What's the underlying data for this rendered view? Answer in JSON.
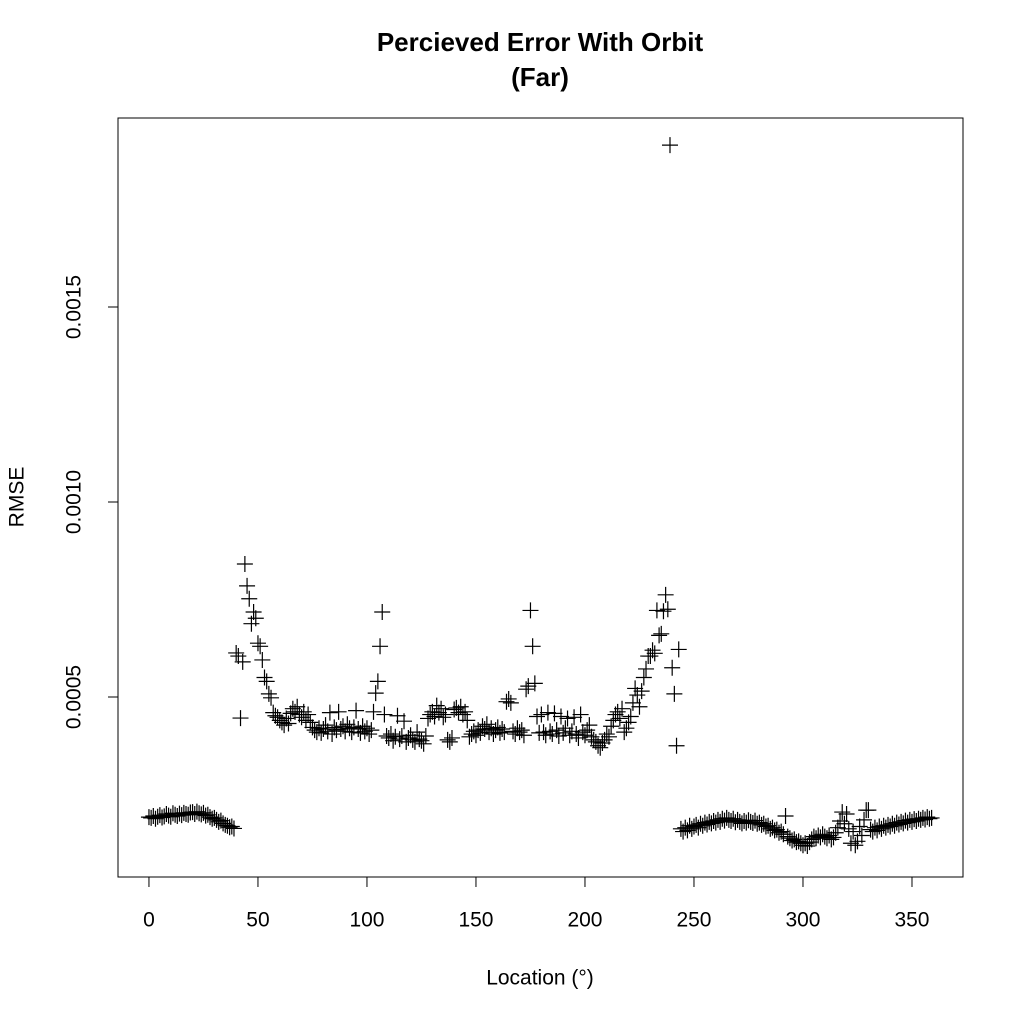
{
  "chart_data": {
    "type": "scatter",
    "title": [
      "Percieved Error With Orbit",
      "(Far)"
    ],
    "x_label": "Location (°)",
    "y_label": "RMSE",
    "xlim": [
      -14.2,
      373.4
    ],
    "ylim": [
      3.85e-05,
      0.0019846
    ],
    "xticks": [
      0,
      50,
      100,
      150,
      200,
      250,
      300,
      350
    ],
    "yticks": [
      0.0005,
      {
        "value": 0.001,
        "label": "0.0010"
      },
      0.0015
    ],
    "color": "#000000",
    "marker": "plus",
    "x": [
      0,
      1,
      2,
      3,
      4,
      5,
      6,
      7,
      8,
      9,
      10,
      11,
      12,
      13,
      14,
      15,
      16,
      17,
      18,
      19,
      20,
      21,
      22,
      23,
      24,
      25,
      26,
      27,
      28,
      29,
      30,
      31,
      32,
      33,
      34,
      35,
      36,
      37,
      38,
      39,
      40,
      41,
      42,
      43,
      44,
      45,
      46,
      47,
      48,
      49,
      50,
      51,
      52,
      53,
      54,
      55,
      56,
      57,
      58,
      59,
      60,
      61,
      62,
      63,
      64,
      65,
      66,
      67,
      68,
      69,
      70,
      71,
      72,
      73,
      74,
      75,
      76,
      77,
      78,
      79,
      80,
      81,
      82,
      83,
      84,
      85,
      86,
      87,
      88,
      89,
      90,
      91,
      92,
      93,
      94,
      95,
      96,
      97,
      98,
      99,
      100,
      101,
      102,
      103,
      104,
      105,
      106,
      107,
      108,
      109,
      110,
      111,
      112,
      113,
      114,
      115,
      116,
      117,
      118,
      119,
      120,
      121,
      122,
      123,
      124,
      125,
      126,
      127,
      128,
      129,
      130,
      131,
      132,
      133,
      134,
      135,
      136,
      137,
      138,
      139,
      140,
      141,
      142,
      143,
      144,
      145,
      146,
      147,
      148,
      149,
      150,
      151,
      152,
      153,
      154,
      155,
      156,
      157,
      158,
      159,
      160,
      161,
      162,
      163,
      164,
      165,
      166,
      167,
      168,
      169,
      170,
      171,
      172,
      173,
      174,
      175,
      176,
      177,
      178,
      179,
      180,
      181,
      182,
      183,
      184,
      185,
      186,
      187,
      188,
      189,
      190,
      191,
      192,
      193,
      194,
      195,
      196,
      197,
      198,
      199,
      200,
      201,
      202,
      203,
      204,
      205,
      206,
      207,
      208,
      209,
      210,
      211,
      212,
      213,
      214,
      215,
      216,
      217,
      218,
      219,
      220,
      221,
      222,
      223,
      224,
      225,
      226,
      227,
      228,
      229,
      230,
      231,
      232,
      233,
      234,
      235,
      236,
      237,
      238,
      239,
      240,
      241,
      242,
      243,
      244,
      245,
      246,
      247,
      248,
      249,
      250,
      251,
      252,
      253,
      254,
      255,
      256,
      257,
      258,
      259,
      260,
      261,
      262,
      263,
      264,
      265,
      266,
      267,
      268,
      269,
      270,
      271,
      272,
      273,
      274,
      275,
      276,
      277,
      278,
      279,
      280,
      281,
      282,
      283,
      284,
      285,
      286,
      287,
      288,
      289,
      290,
      291,
      292,
      293,
      294,
      295,
      296,
      297,
      298,
      299,
      300,
      301,
      302,
      303,
      304,
      305,
      306,
      307,
      308,
      309,
      310,
      311,
      312,
      313,
      314,
      315,
      316,
      317,
      318,
      319,
      320,
      321,
      322,
      323,
      324,
      325,
      326,
      327,
      328,
      329,
      330,
      331,
      332,
      333,
      334,
      335,
      336,
      337,
      338,
      339,
      340,
      341,
      342,
      343,
      344,
      345,
      346,
      347,
      348,
      349,
      350,
      351,
      352,
      353,
      354,
      355,
      356,
      357,
      358,
      359
    ],
    "values": [
      0.000192,
      0.00019,
      0.000195,
      0.000188,
      0.000193,
      0.000197,
      0.000191,
      0.000194,
      0.0002,
      0.000196,
      0.000193,
      0.000202,
      0.000198,
      0.000195,
      0.000201,
      0.000197,
      0.000203,
      0.0002,
      0.000198,
      0.000204,
      0.000205,
      0.0002,
      0.000206,
      0.000202,
      0.000199,
      0.000203,
      0.000196,
      0.000198,
      0.000192,
      0.000188,
      0.00019,
      0.000185,
      0.00018,
      0.000183,
      0.000176,
      0.000172,
      0.00017,
      0.000166,
      0.000168,
      0.000163,
      0.000613,
      0.000605,
      0.000446,
      0.00059,
      0.000841,
      0.000785,
      0.000752,
      0.000688,
      0.000718,
      0.000702,
      0.000638,
      0.00063,
      0.000595,
      0.00055,
      0.00054,
      0.000508,
      0.000498,
      0.00046,
      0.000452,
      0.000448,
      0.00044,
      0.000435,
      0.000428,
      0.000445,
      0.000432,
      0.000458,
      0.00047,
      0.000462,
      0.000475,
      0.000455,
      0.000448,
      0.000462,
      0.00044,
      0.000455,
      0.000435,
      0.000422,
      0.000415,
      0.00041,
      0.00042,
      0.000408,
      0.000418,
      0.000428,
      0.000412,
      0.00046,
      0.000405,
      0.000422,
      0.000415,
      0.000462,
      0.000418,
      0.000425,
      0.000412,
      0.00043,
      0.00042,
      0.00041,
      0.000422,
      0.000465,
      0.000418,
      0.000408,
      0.000425,
      0.000412,
      0.00042,
      0.000405,
      0.000415,
      0.000462,
      0.00051,
      0.00054,
      0.00063,
      0.000718,
      0.000455,
      0.0004,
      0.000395,
      0.000405,
      0.000388,
      0.000398,
      0.000452,
      0.000392,
      0.0004,
      0.000438,
      0.000385,
      0.000395,
      0.000402,
      0.00039,
      0.000385,
      0.00041,
      0.000392,
      0.000388,
      0.00038,
      0.0004,
      0.000445,
      0.000455,
      0.000462,
      0.00045,
      0.000478,
      0.00046,
      0.00047,
      0.000448,
      0.000455,
      0.00039,
      0.000385,
      0.000395,
      0.000468,
      0.000472,
      0.00046,
      0.000475,
      0.000455,
      0.000462,
      0.00044,
      0.000398,
      0.000405,
      0.000412,
      0.000402,
      0.000415,
      0.000408,
      0.000425,
      0.000418,
      0.00043,
      0.00041,
      0.00042,
      0.000405,
      0.000415,
      0.000422,
      0.000408,
      0.000418,
      0.00041,
      0.000488,
      0.000495,
      0.000485,
      0.000412,
      0.000405,
      0.00042,
      0.00041,
      0.000415,
      0.000402,
      0.00052,
      0.000528,
      0.000722,
      0.00063,
      0.000535,
      0.00045,
      0.000408,
      0.000455,
      0.00041,
      0.000402,
      0.00046,
      0.000412,
      0.000405,
      0.000458,
      0.000415,
      0.0004,
      0.00045,
      0.000408,
      0.00042,
      0.000445,
      0.000402,
      0.000412,
      0.000448,
      0.000405,
      0.000395,
      0.000455,
      0.00041,
      0.000402,
      0.000415,
      0.000428,
      0.000398,
      0.00039,
      0.000385,
      0.000375,
      0.00037,
      0.000382,
      0.00039,
      0.000405,
      0.000398,
      0.000425,
      0.00044,
      0.000455,
      0.000462,
      0.000445,
      0.00047,
      0.00041,
      0.00042,
      0.000435,
      0.00045,
      0.000485,
      0.000522,
      0.000505,
      0.000475,
      0.000515,
      0.00055,
      0.000572,
      0.000605,
      0.000605,
      0.00062,
      0.000612,
      0.000722,
      0.000658,
      0.000662,
      0.00072,
      0.000762,
      0.000725,
      0.001915,
      0.000575,
      0.000508,
      0.000375,
      0.000622,
      0.000162,
      0.000155,
      0.000165,
      0.000158,
      0.00017,
      0.000162,
      0.000168,
      0.000172,
      0.000165,
      0.000175,
      0.00017,
      0.000178,
      0.000173,
      0.00018,
      0.000176,
      0.000182,
      0.000178,
      0.000185,
      0.00018,
      0.000188,
      0.000183,
      0.00019,
      0.000185,
      0.000182,
      0.000188,
      0.000179,
      0.000185,
      0.00018,
      0.000176,
      0.000182,
      0.000178,
      0.000184,
      0.00018,
      0.000177,
      0.000183,
      0.000175,
      0.000178,
      0.000172,
      0.000175,
      0.000168,
      0.00017,
      0.000162,
      0.000165,
      0.000158,
      0.00016,
      0.000152,
      0.000155,
      0.000148,
      0.000195,
      0.000142,
      0.000138,
      0.000132,
      0.000135,
      0.000128,
      0.00013,
      0.000125,
      0.00012,
      0.000125,
      0.000118,
      0.000128,
      0.000135,
      0.000142,
      0.000138,
      0.000145,
      0.00014,
      0.000148,
      0.000142,
      0.000138,
      0.000145,
      0.000135,
      0.00014,
      0.000152,
      0.000165,
      0.000182,
      0.000205,
      0.000175,
      0.0002,
      0.000162,
      0.000125,
      0.000155,
      0.00012,
      0.00013,
      0.000168,
      0.000145,
      0.000185,
      0.00021,
      0.00021,
      0.00016,
      0.000155,
      0.000165,
      0.000158,
      0.000168,
      0.000162,
      0.00017,
      0.000165,
      0.000172,
      0.000168,
      0.000175,
      0.00017,
      0.000178,
      0.000173,
      0.00018,
      0.000176,
      0.000183,
      0.000178,
      0.000185,
      0.00018,
      0.000187,
      0.000182,
      0.000188,
      0.000185,
      0.00019,
      0.000186,
      0.000192,
      0.000188,
      0.00019
    ]
  }
}
